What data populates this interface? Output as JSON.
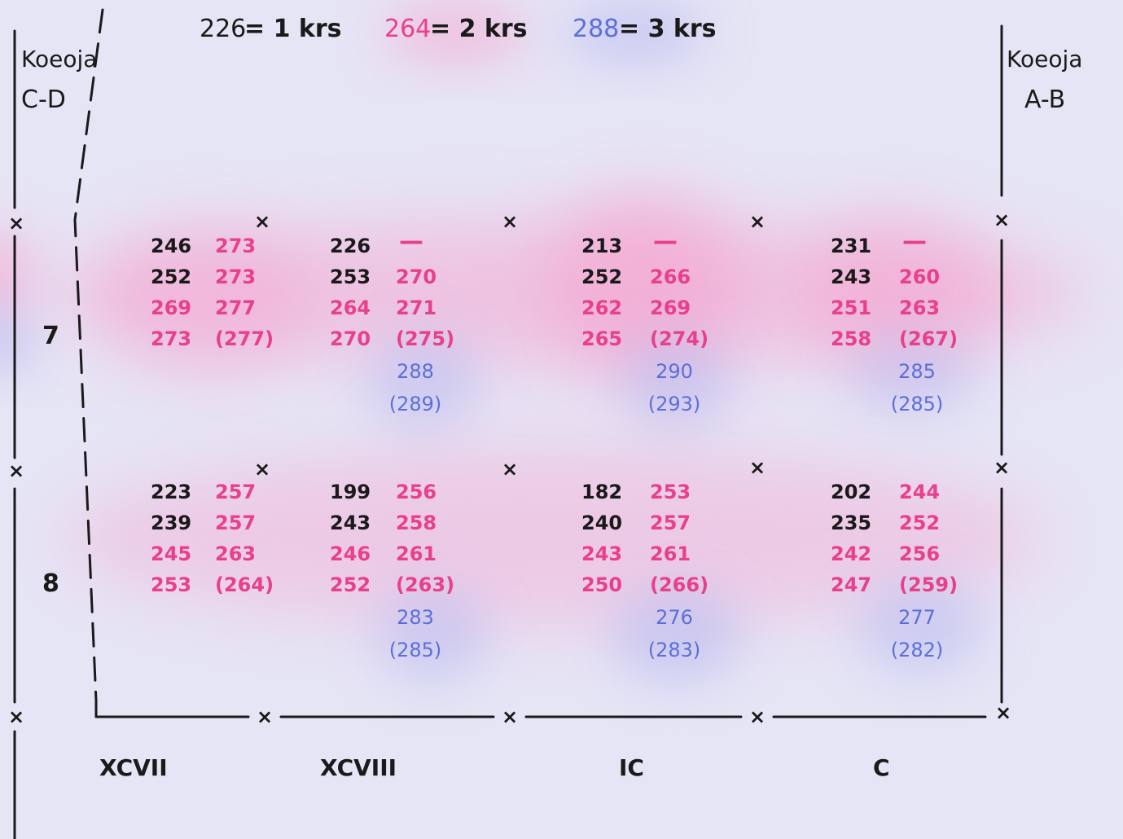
{
  "legend": [
    {
      "num": "226",
      "text": "= 1 krs",
      "num_color": "#1a1a1a"
    },
    {
      "num": "264",
      "text": "= 2 krs",
      "num_color": "#e8408c"
    },
    {
      "num": "288",
      "text": "= 3 krs",
      "num_color": "#5b6fd8"
    }
  ],
  "left_label": {
    "line1": "Koeoja",
    "line2": "C-D"
  },
  "right_label": {
    "line1": "Koeoja",
    "line2": "A-B"
  },
  "row_labels": [
    "7",
    "8"
  ],
  "col_labels": [
    "XCVII",
    "XCVIII",
    "IC",
    "C"
  ],
  "marker": "×",
  "colors": {
    "black": "#1a1a1a",
    "pink": "#e8408c",
    "blue": "#5b6fd8",
    "pink_glow": "#f4a9d2",
    "blue_glow": "#b9bcf0"
  },
  "cells": [
    {
      "row": 0,
      "col": 0,
      "left": [
        "246",
        "252",
        "269",
        "273"
      ],
      "left_colors": [
        "black",
        "black",
        "pink",
        "pink"
      ],
      "right": [
        "273",
        "273",
        "277",
        "(277)"
      ],
      "blue": []
    },
    {
      "row": 0,
      "col": 1,
      "left": [
        "226",
        "253",
        "264",
        "270"
      ],
      "left_colors": [
        "black",
        "black",
        "pink",
        "pink"
      ],
      "right": [
        "—",
        "270",
        "271",
        "(275)"
      ],
      "blue": [
        "288",
        "(289)"
      ]
    },
    {
      "row": 0,
      "col": 2,
      "left": [
        "213",
        "252",
        "262",
        "265"
      ],
      "left_colors": [
        "black",
        "black",
        "pink",
        "pink"
      ],
      "right": [
        "—",
        "266",
        "269",
        "(274)"
      ],
      "blue": [
        "290",
        "(293)"
      ]
    },
    {
      "row": 0,
      "col": 3,
      "left": [
        "231",
        "243",
        "251",
        "258"
      ],
      "left_colors": [
        "black",
        "black",
        "pink",
        "pink"
      ],
      "right": [
        "—",
        "260",
        "263",
        "(267)"
      ],
      "blue": [
        "285",
        "(285)"
      ]
    },
    {
      "row": 1,
      "col": 0,
      "left": [
        "223",
        "239",
        "245",
        "253"
      ],
      "left_colors": [
        "black",
        "black",
        "pink",
        "pink"
      ],
      "right": [
        "257",
        "257",
        "263",
        "(264)"
      ],
      "blue": []
    },
    {
      "row": 1,
      "col": 1,
      "left": [
        "199",
        "243",
        "246",
        "252"
      ],
      "left_colors": [
        "black",
        "black",
        "pink",
        "pink"
      ],
      "right": [
        "256",
        "258",
        "261",
        "(263)"
      ],
      "blue": [
        "283",
        "(285)"
      ]
    },
    {
      "row": 1,
      "col": 2,
      "left": [
        "182",
        "240",
        "243",
        "250"
      ],
      "left_colors": [
        "black",
        "black",
        "pink",
        "pink"
      ],
      "right": [
        "253",
        "257",
        "261",
        "(266)"
      ],
      "blue": [
        "276",
        "(283)"
      ]
    },
    {
      "row": 1,
      "col": 3,
      "left": [
        "202",
        "235",
        "242",
        "247"
      ],
      "left_colors": [
        "black",
        "black",
        "pink",
        "pink"
      ],
      "right": [
        "244",
        "252",
        "256",
        "(259)"
      ],
      "blue": [
        "277",
        "(282)"
      ]
    }
  ]
}
